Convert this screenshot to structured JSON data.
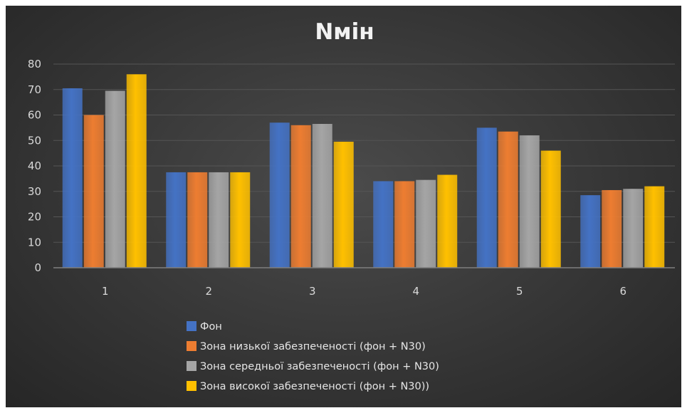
{
  "chart_data": {
    "type": "bar",
    "title": "Nмін",
    "xlabel": "",
    "ylabel": "",
    "categories": [
      "1",
      "2",
      "3",
      "4",
      "5",
      "6"
    ],
    "ylim": [
      0,
      80
    ],
    "yticks": [
      0,
      10,
      20,
      30,
      40,
      50,
      60,
      70,
      80
    ],
    "grid": true,
    "legend_position": "bottom",
    "series": [
      {
        "name": "Фон",
        "color": "#4472c4",
        "values": [
          70.5,
          37.5,
          57,
          34,
          55,
          28.5
        ]
      },
      {
        "name": "Зона низької забезпеченості (фон + N30)",
        "color": "#ed7d31",
        "values": [
          60,
          37.5,
          56,
          34,
          53.5,
          30.5
        ]
      },
      {
        "name": "Зона середньої забезпеченості (фон + N30)",
        "color": "#a5a5a5",
        "values": [
          69.5,
          37.5,
          56.5,
          34.5,
          52,
          31
        ]
      },
      {
        "name": "Зона високої забезпеченості (фон + N30))",
        "color": "#ffc000",
        "values": [
          76,
          37.5,
          49.5,
          36.5,
          46,
          32
        ]
      }
    ]
  }
}
